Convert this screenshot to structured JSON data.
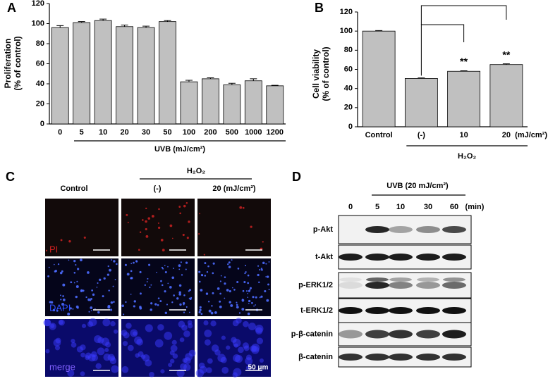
{
  "chart_data": [
    {
      "type": "bar",
      "panel_label": "A",
      "y_label": [
        "Proliferation",
        "(% of control)"
      ],
      "x_label": "UVB (mJ/cm²)",
      "categories": [
        "0",
        "5",
        "10",
        "20",
        "30",
        "50",
        "100",
        "200",
        "500",
        "1000",
        "1200"
      ],
      "values": [
        96,
        101,
        103,
        97,
        96,
        102,
        42,
        45,
        39,
        43,
        38
      ],
      "errors": [
        2,
        1,
        1.5,
        1.5,
        1.5,
        1,
        1.5,
        1,
        1.5,
        2,
        0.5
      ],
      "color": "#c0c0c0",
      "ylim": [
        0,
        120
      ],
      "yticks": [
        0,
        20,
        40,
        60,
        80,
        100,
        120
      ]
    },
    {
      "type": "bar",
      "panel_label": "B",
      "y_label": [
        "Cell viability",
        "(% of control)"
      ],
      "categories": [
        "Control",
        "(-)",
        "10",
        "20"
      ],
      "x_unit": "(mJ/cm²)",
      "group_label": "H₂O₂",
      "values": [
        100,
        50.5,
        58,
        65
      ],
      "errors": [
        0.6,
        0.6,
        0.5,
        0.8
      ],
      "significance": [
        {
          "category": "10",
          "label": "**"
        },
        {
          "category": "20",
          "label": "**"
        }
      ],
      "color": "#c0c0c0",
      "ylim": [
        0,
        120
      ],
      "yticks": [
        0,
        20,
        40,
        60,
        80,
        100,
        120
      ]
    }
  ],
  "panel_c": {
    "panel_label": "C",
    "group_label": "H₂O₂",
    "columns": [
      "Control",
      "(-)",
      "20 (mJ/cm²)"
    ],
    "rows": [
      "PI",
      "DAPI",
      "merge"
    ],
    "scale_bar": "50 μm"
  },
  "panel_d": {
    "panel_label": "D",
    "header": "UVB (20 mJ/cm²)",
    "lanes": [
      "0",
      "5",
      "10",
      "30",
      "60"
    ],
    "lane_unit": "(min)",
    "rows": [
      "p-Akt",
      "t-Akt",
      "p-ERK1/2",
      "t-ERK1/2",
      "p-β-catenin",
      "β-catenin"
    ]
  }
}
